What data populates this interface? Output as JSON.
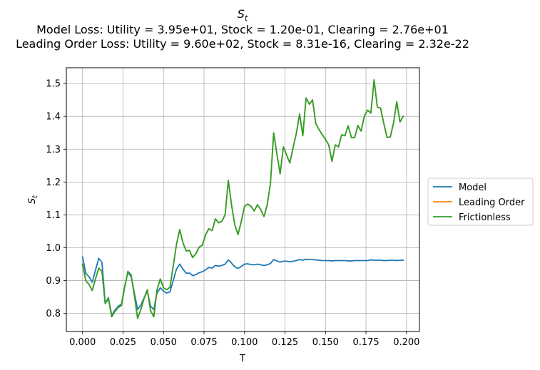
{
  "chart_data": {
    "type": "line",
    "title": "S_t",
    "title_main": "S",
    "title_sub": "t",
    "subtitle_lines": [
      "Model Loss: Utility = 3.95e+01, Stock = 1.20e-01, Clearing = 2.76e+01",
      "Leading Order Loss: Utility = 9.60e+02, Stock = 8.31e-16, Clearing = 2.32e-22"
    ],
    "xlabel": "T",
    "ylabel": "S_t",
    "ylabel_main": "S",
    "ylabel_sub": "t",
    "xlim": [
      -0.01,
      0.208
    ],
    "ylim": [
      0.745,
      1.548
    ],
    "xticks": [
      0.0,
      0.025,
      0.05,
      0.075,
      0.1,
      0.125,
      0.15,
      0.175,
      0.2
    ],
    "xtick_labels": [
      "0.000",
      "0.025",
      "0.050",
      "0.075",
      "0.100",
      "0.125",
      "0.150",
      "0.175",
      "0.200"
    ],
    "yticks": [
      0.8,
      0.9,
      1.0,
      1.1,
      1.2,
      1.3,
      1.4,
      1.5
    ],
    "ytick_labels": [
      "0.8",
      "0.9",
      "1.0",
      "1.1",
      "1.2",
      "1.3",
      "1.4",
      "1.5"
    ],
    "grid": true,
    "legend_position": "right-outside",
    "x": [
      0.0,
      0.002,
      0.004,
      0.006,
      0.008,
      0.01,
      0.012,
      0.014,
      0.016,
      0.018,
      0.02,
      0.022,
      0.024,
      0.026,
      0.028,
      0.03,
      0.032,
      0.034,
      0.036,
      0.038,
      0.04,
      0.042,
      0.044,
      0.046,
      0.048,
      0.05,
      0.052,
      0.054,
      0.056,
      0.058,
      0.06,
      0.062,
      0.064,
      0.066,
      0.068,
      0.07,
      0.072,
      0.074,
      0.076,
      0.078,
      0.08,
      0.082,
      0.084,
      0.086,
      0.088,
      0.09,
      0.092,
      0.094,
      0.096,
      0.098,
      0.1,
      0.102,
      0.104,
      0.106,
      0.108,
      0.11,
      0.112,
      0.114,
      0.116,
      0.118,
      0.12,
      0.122,
      0.124,
      0.126,
      0.128,
      0.13,
      0.132,
      0.134,
      0.136,
      0.138,
      0.14,
      0.142,
      0.144,
      0.146,
      0.148,
      0.15,
      0.152,
      0.154,
      0.156,
      0.158,
      0.16,
      0.162,
      0.164,
      0.166,
      0.168,
      0.17,
      0.172,
      0.174,
      0.176,
      0.178,
      0.18,
      0.182,
      0.184,
      0.186,
      0.188,
      0.19,
      0.192,
      0.194,
      0.196,
      0.198
    ],
    "series": [
      {
        "name": "Model",
        "color": "#1f77b4",
        "values": [
          0.972,
          0.922,
          0.912,
          0.895,
          0.932,
          0.968,
          0.955,
          0.832,
          0.848,
          0.795,
          0.81,
          0.822,
          0.828,
          0.882,
          0.925,
          0.912,
          0.862,
          0.812,
          0.825,
          0.848,
          0.868,
          0.822,
          0.812,
          0.862,
          0.878,
          0.868,
          0.862,
          0.866,
          0.9,
          0.935,
          0.95,
          0.935,
          0.922,
          0.923,
          0.915,
          0.918,
          0.924,
          0.927,
          0.933,
          0.94,
          0.938,
          0.946,
          0.944,
          0.946,
          0.95,
          0.963,
          0.953,
          0.942,
          0.937,
          0.943,
          0.95,
          0.951,
          0.949,
          0.948,
          0.95,
          0.948,
          0.946,
          0.948,
          0.952,
          0.964,
          0.96,
          0.956,
          0.959,
          0.959,
          0.957,
          0.959,
          0.961,
          0.964,
          0.962,
          0.965,
          0.964,
          0.964,
          0.963,
          0.962,
          0.961,
          0.961,
          0.961,
          0.96,
          0.961,
          0.961,
          0.961,
          0.961,
          0.96,
          0.96,
          0.961,
          0.961,
          0.961,
          0.961,
          0.961,
          0.963,
          0.962,
          0.962,
          0.962,
          0.961,
          0.961,
          0.962,
          0.962,
          0.961,
          0.962,
          0.962
        ]
      },
      {
        "name": "Leading Order",
        "color": "#ff7f0e",
        "values": [
          0.95,
          0.9,
          0.888,
          0.87,
          0.905,
          0.938,
          0.928,
          0.83,
          0.845,
          0.79,
          0.806,
          0.818,
          0.824,
          0.88,
          0.928,
          0.917,
          0.855,
          0.785,
          0.812,
          0.846,
          0.872,
          0.808,
          0.79,
          0.872,
          0.905,
          0.878,
          0.872,
          0.88,
          0.945,
          1.01,
          1.055,
          1.015,
          0.99,
          0.992,
          0.97,
          0.982,
          1.002,
          1.008,
          1.04,
          1.058,
          1.052,
          1.088,
          1.076,
          1.08,
          1.1,
          1.205,
          1.13,
          1.07,
          1.04,
          1.08,
          1.126,
          1.133,
          1.126,
          1.112,
          1.131,
          1.116,
          1.095,
          1.13,
          1.195,
          1.35,
          1.285,
          1.225,
          1.307,
          1.282,
          1.258,
          1.305,
          1.348,
          1.407,
          1.341,
          1.456,
          1.437,
          1.45,
          1.378,
          1.36,
          1.344,
          1.33,
          1.313,
          1.263,
          1.313,
          1.307,
          1.344,
          1.341,
          1.371,
          1.335,
          1.335,
          1.372,
          1.355,
          1.401,
          1.419,
          1.41,
          1.511,
          1.428,
          1.425,
          1.378,
          1.336,
          1.337,
          1.38,
          1.444,
          1.383,
          1.4
        ]
      },
      {
        "name": "Frictionless",
        "color": "#2ca02c",
        "values": [
          0.95,
          0.9,
          0.888,
          0.87,
          0.905,
          0.938,
          0.928,
          0.83,
          0.845,
          0.79,
          0.806,
          0.818,
          0.824,
          0.88,
          0.928,
          0.917,
          0.855,
          0.785,
          0.812,
          0.846,
          0.872,
          0.808,
          0.79,
          0.872,
          0.905,
          0.878,
          0.872,
          0.88,
          0.945,
          1.01,
          1.055,
          1.015,
          0.99,
          0.992,
          0.97,
          0.982,
          1.002,
          1.008,
          1.04,
          1.058,
          1.052,
          1.088,
          1.076,
          1.08,
          1.1,
          1.205,
          1.13,
          1.07,
          1.04,
          1.08,
          1.126,
          1.133,
          1.126,
          1.112,
          1.131,
          1.116,
          1.095,
          1.13,
          1.195,
          1.35,
          1.285,
          1.225,
          1.307,
          1.282,
          1.258,
          1.305,
          1.348,
          1.407,
          1.341,
          1.456,
          1.437,
          1.45,
          1.378,
          1.36,
          1.344,
          1.33,
          1.313,
          1.263,
          1.313,
          1.307,
          1.344,
          1.341,
          1.371,
          1.335,
          1.335,
          1.372,
          1.355,
          1.401,
          1.419,
          1.41,
          1.511,
          1.428,
          1.425,
          1.378,
          1.336,
          1.337,
          1.38,
          1.444,
          1.383,
          1.4
        ]
      }
    ]
  }
}
